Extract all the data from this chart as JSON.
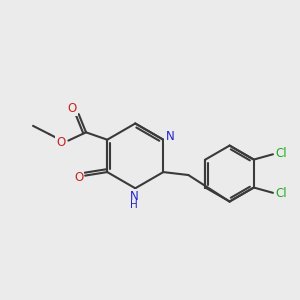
{
  "background_color": "#ebebeb",
  "bond_color": "#3a3a3a",
  "N_color": "#2222cc",
  "O_color": "#cc2222",
  "Cl_color": "#22aa22",
  "line_width": 1.5,
  "figsize": [
    3.0,
    3.0
  ],
  "dpi": 100,
  "xlim": [
    0,
    10
  ],
  "ylim": [
    0,
    10
  ]
}
